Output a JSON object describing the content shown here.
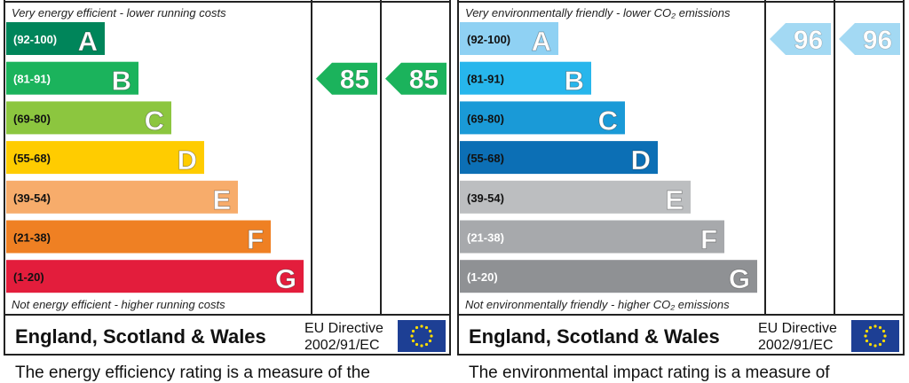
{
  "chart_data": [
    {
      "type": "bar",
      "chart": "energy-efficiency",
      "top_note": "Very energy efficient - lower running costs",
      "bottom_note": "Not energy efficient - higher running costs",
      "footer_region": "England, Scotland & Wales",
      "footer_directive_1": "EU Directive",
      "footer_directive_2": "2002/91/EC",
      "caption": "The energy efficiency rating is a measure of the",
      "bands": [
        {
          "letter": "A",
          "range": "(92-100)",
          "color": "#00855a",
          "range_color": "#ffffff"
        },
        {
          "letter": "B",
          "range": "(81-91)",
          "color": "#1bb35c",
          "range_color": "#ffffff"
        },
        {
          "letter": "C",
          "range": "(69-80)",
          "color": "#8cc63f",
          "range_color": "#111111"
        },
        {
          "letter": "D",
          "range": "(55-68)",
          "color": "#ffcc00",
          "range_color": "#111111"
        },
        {
          "letter": "E",
          "range": "(39-54)",
          "color": "#f7ac6b",
          "range_color": "#111111"
        },
        {
          "letter": "F",
          "range": "(21-38)",
          "color": "#ef8023",
          "range_color": "#111111"
        },
        {
          "letter": "G",
          "range": "(1-20)",
          "color": "#e31d3c",
          "range_color": "#111111"
        }
      ],
      "ratings": [
        {
          "value": 85,
          "band": "B",
          "color": "#1bb35c"
        },
        {
          "value": 85,
          "band": "B",
          "color": "#1bb35c"
        }
      ]
    },
    {
      "type": "bar",
      "chart": "environmental-impact",
      "top_note": "Very environmentally friendly - lower CO₂ emissions",
      "bottom_note": "Not environmentally friendly - higher CO₂ emissions",
      "footer_region": "England, Scotland & Wales",
      "footer_directive_1": "EU Directive",
      "footer_directive_2": "2002/91/EC",
      "caption": "The environmental impact rating is a measure of",
      "bands": [
        {
          "letter": "A",
          "range": "(92-100)",
          "color": "#8fd1f3",
          "range_color": "#111111"
        },
        {
          "letter": "B",
          "range": "(81-91)",
          "color": "#27b6ec",
          "range_color": "#111111"
        },
        {
          "letter": "C",
          "range": "(69-80)",
          "color": "#1a9ad7",
          "range_color": "#111111"
        },
        {
          "letter": "D",
          "range": "(55-68)",
          "color": "#0c6fb5",
          "range_color": "#111111"
        },
        {
          "letter": "E",
          "range": "(39-54)",
          "color": "#bcbec0",
          "range_color": "#111111"
        },
        {
          "letter": "F",
          "range": "(21-38)",
          "color": "#a7a9ac",
          "range_color": "#ffffff"
        },
        {
          "letter": "G",
          "range": "(1-20)",
          "color": "#8f9194",
          "range_color": "#ffffff"
        }
      ],
      "ratings": [
        {
          "value": 96,
          "band": "A",
          "color": "#a3d9f3"
        },
        {
          "value": 96,
          "band": "A",
          "color": "#a3d9f3"
        }
      ]
    }
  ]
}
